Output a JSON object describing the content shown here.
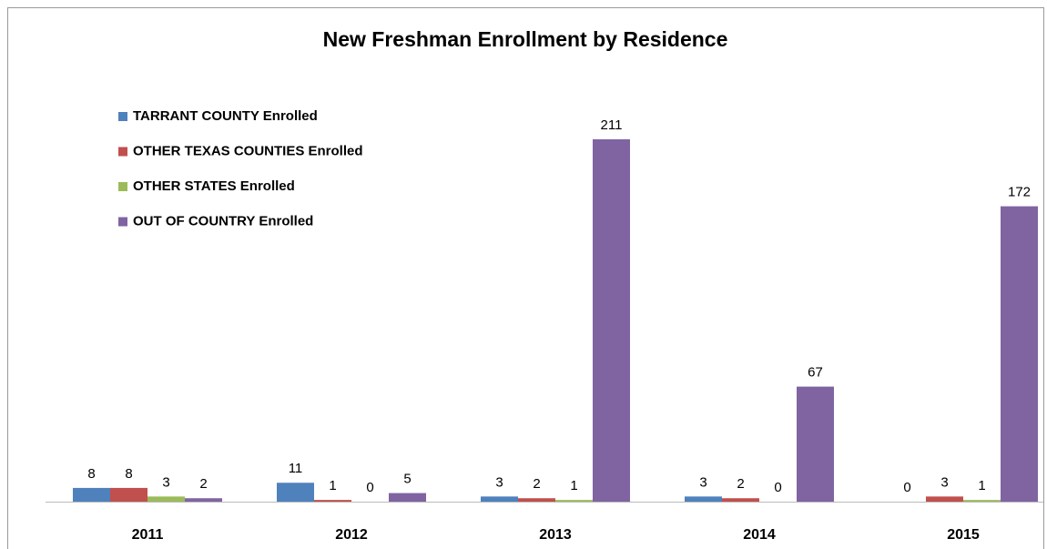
{
  "chart_data": {
    "type": "bar",
    "title": "New Freshman Enrollment by Residence",
    "categories": [
      "2011",
      "2012",
      "2013",
      "2014",
      "2015"
    ],
    "series": [
      {
        "name": "TARRANT COUNTY Enrolled",
        "color": "#4f81bd",
        "values": [
          8,
          11,
          3,
          3,
          0
        ]
      },
      {
        "name": "OTHER TEXAS COUNTIES Enrolled",
        "color": "#c0504d",
        "values": [
          8,
          1,
          2,
          2,
          3
        ]
      },
      {
        "name": "OTHER STATES Enrolled",
        "color": "#9bbb59",
        "values": [
          3,
          0,
          1,
          0,
          1
        ]
      },
      {
        "name": "OUT OF COUNTRY Enrolled",
        "color": "#8064a2",
        "values": [
          2,
          5,
          211,
          67,
          172
        ]
      }
    ],
    "legend": "upper left"
  }
}
